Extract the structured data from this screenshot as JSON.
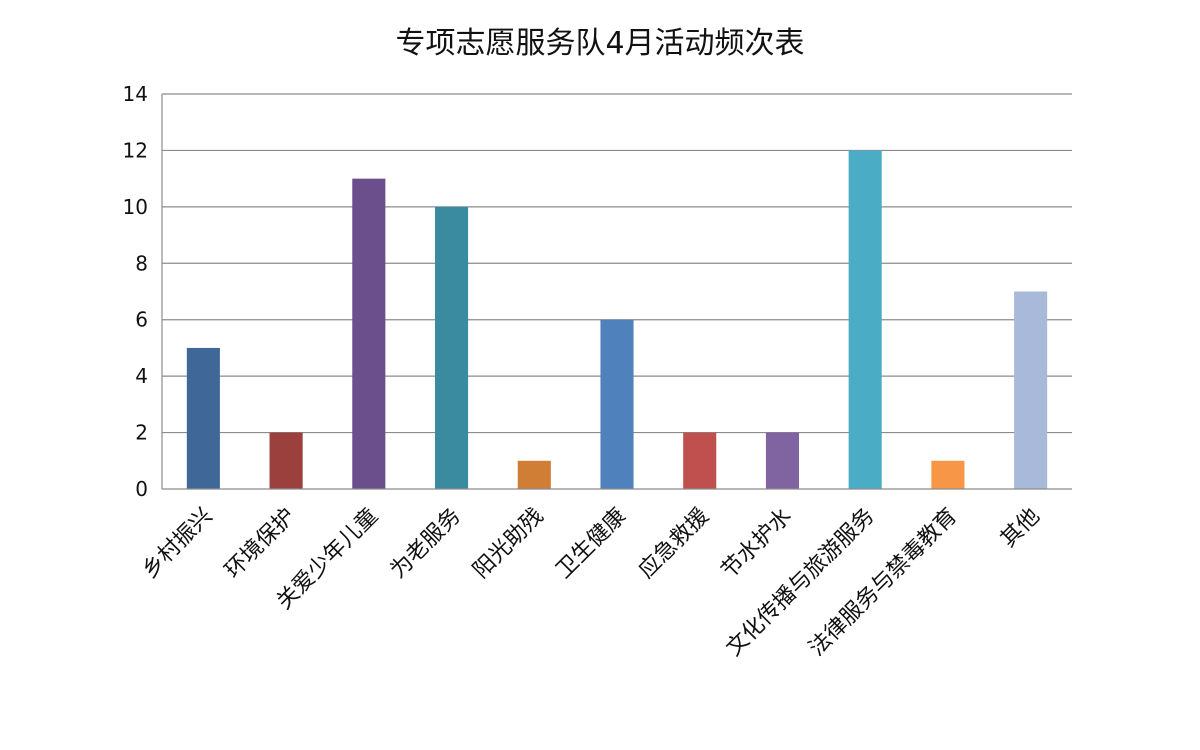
{
  "chart_data": {
    "type": "bar",
    "title": "专项志愿服务队4月活动频次表",
    "categories": [
      "乡村振兴",
      "环境保护",
      "关爱少年儿童",
      "为老服务",
      "阳光助残",
      "卫生健康",
      "应急救援",
      "节水护水",
      "文化传播与旅游服务",
      "法律服务与禁毒教育",
      "其他"
    ],
    "values": [
      5,
      2,
      11,
      10,
      1,
      6,
      2,
      2,
      12,
      1,
      7
    ],
    "bar_colors": [
      "#3f6899",
      "#9c403d",
      "#6a4f8c",
      "#3a8aa0",
      "#d07d35",
      "#4f81bd",
      "#c0504d",
      "#8064a2",
      "#4bacc6",
      "#f79646",
      "#a9b9d9"
    ],
    "ylim": [
      0,
      14
    ],
    "yticks": [
      "0",
      "2",
      "4",
      "6",
      "8",
      "10",
      "12",
      "14"
    ],
    "xlabel": "",
    "ylabel": "",
    "grid": true,
    "legend": "none"
  }
}
